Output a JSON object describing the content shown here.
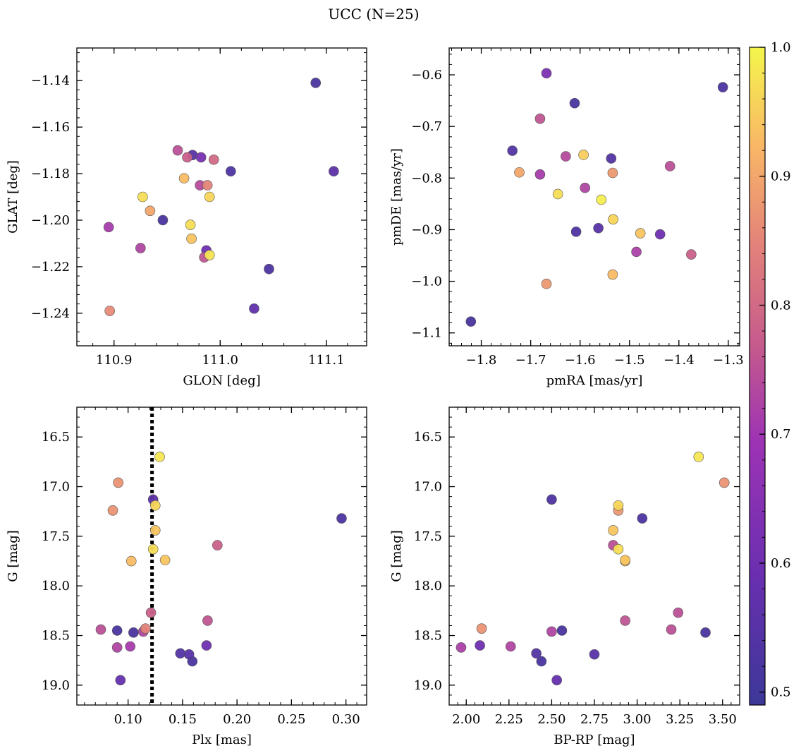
{
  "figure": {
    "title": "UCC (N=25)"
  },
  "colorbar": {
    "min": 0.49,
    "max": 1.0,
    "ticks": [
      0.5,
      0.6,
      0.7,
      0.8,
      0.9,
      1.0
    ],
    "tick_labels": [
      "0.5",
      "0.6",
      "0.7",
      "0.8",
      "0.9",
      "1.0"
    ],
    "colormap": "plasma"
  },
  "chart_data": [
    {
      "type": "scatter",
      "title": "",
      "xlabel": "GLON [deg]",
      "ylabel": "GLAT [deg]",
      "xlim": [
        110.865,
        111.138
      ],
      "ylim": [
        -1.254,
        -1.126
      ],
      "xticks": [
        110.9,
        111.0,
        111.1
      ],
      "xtick_labels": [
        "110.9",
        "111.0",
        "111.1"
      ],
      "yticks": [
        -1.24,
        -1.22,
        -1.2,
        -1.18,
        -1.16,
        -1.14
      ],
      "ytick_labels": [
        "−1.24",
        "−1.22",
        "−1.20",
        "−1.18",
        "−1.16",
        "−1.14"
      ],
      "x": [
        111.09,
        110.96,
        110.974,
        110.982,
        110.969,
        110.994,
        111.01,
        111.107,
        110.966,
        110.981,
        110.927,
        110.99,
        110.988,
        110.934,
        110.946,
        110.972,
        110.973,
        110.895,
        110.925,
        110.987,
        110.99,
        110.985,
        111.046,
        111.032,
        110.896
      ],
      "y": [
        -1.141,
        -1.17,
        -1.172,
        -1.173,
        -1.173,
        -1.174,
        -1.179,
        -1.179,
        -1.182,
        -1.185,
        -1.19,
        -1.19,
        -1.185,
        -1.196,
        -1.2,
        -1.202,
        -1.208,
        -1.203,
        -1.212,
        -1.213,
        -1.215,
        -1.216,
        -1.221,
        -1.238,
        -1.239
      ],
      "color_values": [
        0.52,
        0.75,
        0.55,
        0.62,
        0.78,
        0.8,
        0.53,
        0.56,
        0.93,
        0.74,
        0.97,
        0.96,
        0.85,
        0.9,
        0.52,
        0.97,
        0.94,
        0.71,
        0.73,
        0.6,
        0.98,
        0.76,
        0.53,
        0.57,
        0.86
      ]
    },
    {
      "type": "scatter",
      "title": "",
      "xlabel": "pmRA [mas/yr]",
      "ylabel": "pmDE [mas/yr]",
      "xlim": [
        -1.865,
        -1.277
      ],
      "ylim": [
        -1.125,
        -0.548
      ],
      "xticks": [
        -1.8,
        -1.7,
        -1.6,
        -1.5,
        -1.4,
        -1.3
      ],
      "xtick_labels": [
        "−1.8",
        "−1.7",
        "−1.6",
        "−1.5",
        "−1.4",
        "−1.3"
      ],
      "yticks": [
        -1.1,
        -1.0,
        -0.9,
        -0.8,
        -0.7,
        -0.6
      ],
      "ytick_labels": [
        "−1.1",
        "−1.0",
        "−0.9",
        "−0.8",
        "−0.7",
        "−0.6"
      ],
      "x": [
        -1.668,
        -1.311,
        -1.611,
        -1.681,
        -1.737,
        -1.629,
        -1.593,
        -1.537,
        -1.418,
        -1.723,
        -1.681,
        -1.534,
        -1.59,
        -1.645,
        -1.557,
        -1.533,
        -1.478,
        -1.608,
        -1.563,
        -1.438,
        -1.486,
        -1.375,
        -1.534,
        -1.668,
        -1.821
      ],
      "y": [
        -0.597,
        -0.624,
        -0.655,
        -0.685,
        -0.747,
        -0.758,
        -0.755,
        -0.762,
        -0.777,
        -0.789,
        -0.793,
        -0.79,
        -0.819,
        -0.831,
        -0.842,
        -0.88,
        -0.907,
        -0.904,
        -0.897,
        -0.909,
        -0.943,
        -0.948,
        -0.987,
        -1.005,
        -1.078
      ],
      "color_values": [
        0.63,
        0.53,
        0.52,
        0.76,
        0.54,
        0.74,
        0.95,
        0.54,
        0.75,
        0.9,
        0.71,
        0.88,
        0.73,
        0.97,
        0.99,
        0.96,
        0.94,
        0.53,
        0.55,
        0.6,
        0.72,
        0.78,
        0.93,
        0.88,
        0.52
      ]
    },
    {
      "type": "scatter",
      "title": "",
      "xlabel": "Plx [mas]",
      "ylabel": "G [mag]",
      "xlim": [
        0.053,
        0.319
      ],
      "ylim": [
        19.2,
        16.2
      ],
      "yinverted": true,
      "xticks": [
        0.1,
        0.15,
        0.2,
        0.25,
        0.3
      ],
      "xtick_labels": [
        "0.10",
        "0.15",
        "0.20",
        "0.25",
        "0.30"
      ],
      "yticks": [
        16.5,
        17.0,
        17.5,
        18.0,
        18.5,
        19.0
      ],
      "ytick_labels": [
        "16.5",
        "17.0",
        "17.5",
        "18.0",
        "18.5",
        "19.0"
      ],
      "vline": {
        "x": 0.122,
        "style": "dotted",
        "color": "#000000"
      },
      "x": [
        0.129,
        0.091,
        0.123,
        0.086,
        0.125,
        0.296,
        0.125,
        0.182,
        0.123,
        0.103,
        0.134,
        0.121,
        0.173,
        0.075,
        0.09,
        0.116,
        0.114,
        0.105,
        0.09,
        0.102,
        0.172,
        0.148,
        0.156,
        0.159,
        0.093
      ],
      "y": [
        16.7,
        16.96,
        17.13,
        17.24,
        17.19,
        17.32,
        17.44,
        17.59,
        17.63,
        17.75,
        17.74,
        18.27,
        18.35,
        18.44,
        18.45,
        18.43,
        18.46,
        18.47,
        18.62,
        18.61,
        18.6,
        18.68,
        18.69,
        18.76,
        18.95
      ],
      "color_values": [
        0.98,
        0.87,
        0.56,
        0.87,
        0.96,
        0.53,
        0.94,
        0.78,
        0.97,
        0.93,
        0.94,
        0.78,
        0.76,
        0.75,
        0.52,
        0.85,
        0.73,
        0.52,
        0.73,
        0.71,
        0.6,
        0.54,
        0.55,
        0.52,
        0.58
      ]
    },
    {
      "type": "scatter",
      "title": "",
      "xlabel": "BP-RP [mag]",
      "ylabel": "G [mag]",
      "xlim": [
        1.9,
        3.6
      ],
      "ylim": [
        19.2,
        16.2
      ],
      "yinverted": true,
      "xticks": [
        2.0,
        2.25,
        2.5,
        2.75,
        3.0,
        3.25,
        3.5
      ],
      "xtick_labels": [
        "2.00",
        "2.25",
        "2.50",
        "2.75",
        "3.00",
        "3.25",
        "3.50"
      ],
      "yticks": [
        16.5,
        17.0,
        17.5,
        18.0,
        18.5,
        19.0
      ],
      "ytick_labels": [
        "16.5",
        "17.0",
        "17.5",
        "18.0",
        "18.5",
        "19.0"
      ],
      "x": [
        3.36,
        3.51,
        2.5,
        2.89,
        2.89,
        3.03,
        2.86,
        2.86,
        2.89,
        2.93,
        2.93,
        3.24,
        2.93,
        3.2,
        2.56,
        2.09,
        2.5,
        3.4,
        1.97,
        2.26,
        2.08,
        2.41,
        2.75,
        2.44,
        2.53
      ],
      "y": [
        16.7,
        16.96,
        17.13,
        17.24,
        17.19,
        17.32,
        17.44,
        17.59,
        17.63,
        17.75,
        17.74,
        18.27,
        18.35,
        18.44,
        18.45,
        18.43,
        18.46,
        18.47,
        18.62,
        18.61,
        18.6,
        18.68,
        18.69,
        18.76,
        18.95
      ],
      "color_values": [
        0.98,
        0.87,
        0.53,
        0.88,
        0.96,
        0.53,
        0.94,
        0.75,
        0.97,
        0.93,
        0.94,
        0.75,
        0.76,
        0.75,
        0.52,
        0.87,
        0.73,
        0.52,
        0.72,
        0.73,
        0.6,
        0.54,
        0.55,
        0.52,
        0.58
      ]
    }
  ]
}
